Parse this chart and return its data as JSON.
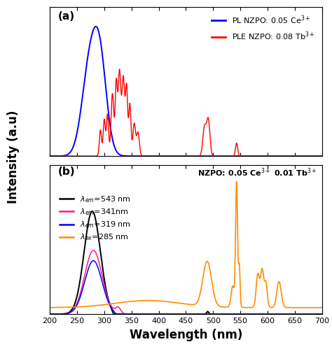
{
  "xlim": [
    200,
    700
  ],
  "xlabel": "Wavelength (nm)",
  "ylabel": "Intensity (a.u)",
  "panel_a_label": "(a)",
  "panel_b_label": "(b)",
  "legend_a": [
    {
      "label": "PL NZPO: 0.05 Ce$^{3+}$",
      "color": "blue"
    },
    {
      "label": "PLE NZPO: 0.08 Tb$^{3+}$",
      "color": "red"
    }
  ],
  "legend_b": [
    {
      "label": "$\\lambda_{em}$=543 nm",
      "color": "black"
    },
    {
      "label": "$\\lambda_{em}$=341nm",
      "color": "deeppink"
    },
    {
      "label": "$\\lambda_{em}$=319 nm",
      "color": "blue"
    },
    {
      "label": "$\\lambda_{ex}$=285 nm",
      "color": "darkorange"
    }
  ]
}
